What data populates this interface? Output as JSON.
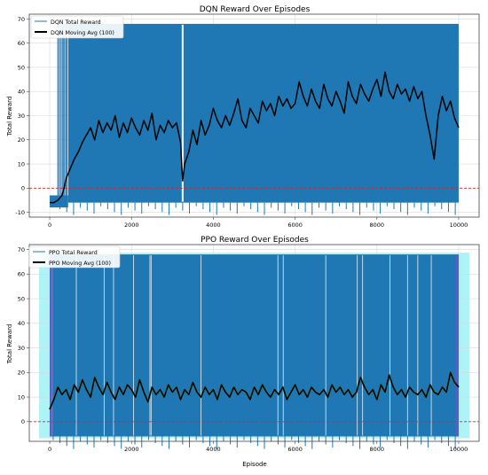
{
  "colors": {
    "raw": "#1f77b4",
    "avg": "#000000",
    "zero_line": "#d62728",
    "grid": "#d9d9d9",
    "ppo_glow": "#aef3f6",
    "ppo_edge": "#7b4fc9"
  },
  "chart_data": [
    {
      "type": "line",
      "title": "DQN Reward Over Episodes",
      "xlabel": "",
      "ylabel": "Total Reward",
      "xlim": [
        -500,
        10500
      ],
      "ylim": [
        -12,
        72
      ],
      "xticks": [
        0,
        2000,
        4000,
        6000,
        8000,
        10000
      ],
      "yticks": [
        -10,
        0,
        10,
        20,
        30,
        40,
        50,
        60,
        70
      ],
      "grid": true,
      "legend": "upper-left",
      "reference_line": {
        "y": 0,
        "style": "dashed"
      },
      "series": [
        {
          "name": "DQN Total Reward",
          "kind": "band",
          "x_range": [
            0,
            10000
          ],
          "upper": 68,
          "lower": -6,
          "early_x": [
            0,
            450
          ],
          "early_band": [
            -8,
            -3
          ],
          "spikes_x": [
            200,
            240,
            280,
            320,
            350,
            390,
            420
          ],
          "gaps_x": [
            3250
          ]
        },
        {
          "name": "DQN Moving Avg (100)",
          "kind": "line",
          "x": [
            0,
            100,
            200,
            300,
            350,
            400,
            500,
            600,
            700,
            800,
            900,
            1000,
            1100,
            1200,
            1300,
            1400,
            1500,
            1600,
            1700,
            1800,
            1900,
            2000,
            2100,
            2200,
            2300,
            2400,
            2500,
            2600,
            2700,
            2800,
            2900,
            3000,
            3100,
            3200,
            3250,
            3300,
            3400,
            3500,
            3600,
            3700,
            3800,
            3900,
            4000,
            4100,
            4200,
            4300,
            4400,
            4500,
            4600,
            4700,
            4800,
            4900,
            5000,
            5100,
            5200,
            5300,
            5400,
            5500,
            5600,
            5700,
            5800,
            5900,
            6000,
            6100,
            6200,
            6300,
            6400,
            6500,
            6600,
            6700,
            6800,
            6900,
            7000,
            7100,
            7200,
            7300,
            7400,
            7500,
            7600,
            7700,
            7800,
            7900,
            8000,
            8100,
            8200,
            8300,
            8400,
            8500,
            8600,
            8700,
            8800,
            8900,
            9000,
            9100,
            9200,
            9300,
            9400,
            9500,
            9600,
            9700,
            9800,
            9900,
            10000
          ],
          "y": [
            -6,
            -6,
            -5,
            -3,
            0,
            4,
            8,
            12,
            15,
            19,
            22,
            25,
            20,
            28,
            23,
            27,
            24,
            30,
            21,
            27,
            23,
            29,
            25,
            22,
            28,
            24,
            31,
            20,
            26,
            23,
            28,
            25,
            27,
            19,
            3,
            10,
            15,
            24,
            18,
            28,
            22,
            26,
            33,
            28,
            25,
            30,
            26,
            31,
            37,
            28,
            25,
            33,
            30,
            27,
            36,
            32,
            35,
            30,
            38,
            34,
            37,
            33,
            35,
            44,
            38,
            34,
            41,
            36,
            33,
            43,
            37,
            34,
            40,
            36,
            31,
            44,
            38,
            35,
            43,
            39,
            36,
            41,
            45,
            38,
            48,
            40,
            37,
            43,
            39,
            41,
            36,
            42,
            37,
            40,
            30,
            22,
            12,
            30,
            38,
            32,
            36,
            29,
            25
          ]
        }
      ]
    },
    {
      "type": "line",
      "title": "PPO Reward Over Episodes",
      "xlabel": "Episode",
      "ylabel": "Total Reward",
      "xlim": [
        -500,
        10500
      ],
      "ylim": [
        -8,
        72
      ],
      "xticks": [
        0,
        2000,
        4000,
        6000,
        8000,
        10000
      ],
      "yticks": [
        0,
        10,
        20,
        30,
        40,
        50,
        60,
        70
      ],
      "grid": true,
      "legend": "upper-left",
      "reference_line": {
        "y": 0,
        "style": "dashed"
      },
      "series": [
        {
          "name": "PPO Total Reward",
          "kind": "band",
          "x_range": [
            0,
            10000
          ],
          "upper": 68,
          "lower": -6,
          "gaps_x": [
            60,
            650,
            1330,
            1560,
            2050,
            2450,
            2480,
            3700,
            5580,
            5710,
            6750,
            7520,
            7650,
            8320,
            8750,
            9000,
            9330
          ]
        },
        {
          "name": "PPO Moving Avg (100)",
          "kind": "line",
          "x": [
            0,
            100,
            200,
            300,
            400,
            500,
            600,
            700,
            800,
            900,
            1000,
            1100,
            1200,
            1300,
            1400,
            1500,
            1600,
            1700,
            1800,
            1900,
            2000,
            2100,
            2200,
            2300,
            2400,
            2500,
            2600,
            2700,
            2800,
            2900,
            3000,
            3100,
            3200,
            3300,
            3400,
            3500,
            3600,
            3700,
            3800,
            3900,
            4000,
            4100,
            4200,
            4300,
            4400,
            4500,
            4600,
            4700,
            4800,
            4900,
            5000,
            5100,
            5200,
            5300,
            5400,
            5500,
            5600,
            5700,
            5800,
            5900,
            6000,
            6100,
            6200,
            6300,
            6400,
            6500,
            6600,
            6700,
            6800,
            6900,
            7000,
            7100,
            7200,
            7300,
            7400,
            7500,
            7600,
            7700,
            7800,
            7900,
            8000,
            8100,
            8200,
            8300,
            8400,
            8500,
            8600,
            8700,
            8800,
            8900,
            9000,
            9100,
            9200,
            9300,
            9400,
            9500,
            9600,
            9700,
            9800,
            9900,
            10000
          ],
          "y": [
            5,
            9,
            14,
            11,
            13,
            9,
            15,
            12,
            17,
            13,
            10,
            18,
            14,
            11,
            16,
            12,
            9,
            14,
            11,
            15,
            13,
            10,
            17,
            12,
            8,
            14,
            11,
            13,
            10,
            15,
            12,
            14,
            9,
            13,
            11,
            16,
            12,
            10,
            14,
            11,
            13,
            9,
            15,
            12,
            10,
            14,
            11,
            13,
            12,
            9,
            14,
            11,
            15,
            12,
            10,
            13,
            11,
            14,
            9,
            12,
            15,
            11,
            13,
            10,
            14,
            12,
            11,
            13,
            10,
            15,
            12,
            14,
            11,
            13,
            10,
            12,
            18,
            14,
            11,
            13,
            9,
            15,
            12,
            19,
            14,
            11,
            13,
            10,
            14,
            12,
            11,
            13,
            10,
            15,
            12,
            11,
            14,
            12,
            20,
            16,
            14
          ]
        }
      ]
    }
  ]
}
